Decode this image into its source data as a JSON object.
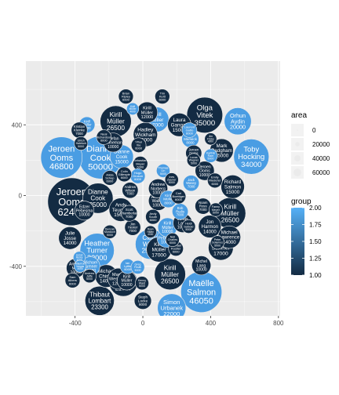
{
  "chart_data": {
    "type": "scatter",
    "subtype": "packed bubble chart",
    "title": "",
    "xlabel": "",
    "ylabel": "",
    "xlim": [
      -690,
      810
    ],
    "ylim": [
      -680,
      760
    ],
    "x_ticks": [
      -400,
      0,
      400,
      800
    ],
    "y_ticks": [
      -400,
      0,
      400
    ],
    "x_tick_labels": [
      "-400",
      "0",
      "400",
      "800"
    ],
    "y_tick_labels": [
      "-400",
      "0",
      "400"
    ],
    "grid": true,
    "panel_background": "#ebebeb",
    "legend": {
      "placement": "right",
      "area": {
        "title": "area",
        "values": [
          0,
          20000,
          40000,
          60000
        ],
        "labels": [
          "0",
          "20000",
          "40000",
          "60000"
        ]
      },
      "group": {
        "title": "group",
        "values": [
          2.0,
          1.75,
          1.5,
          1.25,
          1.0
        ],
        "labels": [
          "2.00",
          "1.75",
          "1.50",
          "1.25",
          "1.00"
        ],
        "low_color": "#132b43",
        "high_color": "#56b1f7"
      }
    },
    "colors": {
      "group_1": "#132b43",
      "group_2": "#4a9de3"
    },
    "bubbles": [
      {
        "label": [
          "Jeroen",
          "Ooms",
          "62400"
        ],
        "x": -420,
        "y": -35,
        "area": 62400,
        "group": 1
      },
      {
        "label": [
          "Jeroen",
          "Ooms",
          "46800"
        ],
        "x": -480,
        "y": 215,
        "area": 46800,
        "group": 2
      },
      {
        "label": [
          "Dianne",
          "Cook",
          "50000"
        ],
        "x": -250,
        "y": 215,
        "area": 50000,
        "group": 2
      },
      {
        "label": [
          "Maëlle",
          "Salmon",
          "46050"
        ],
        "x": 345,
        "y": -545,
        "area": 46050,
        "group": 2
      },
      {
        "label": [
          "Toby",
          "Hocking",
          "34000"
        ],
        "x": 640,
        "y": 220,
        "area": 34000,
        "group": 2
      },
      {
        "label": [
          "Olga",
          "Vitek",
          "35000"
        ],
        "x": 365,
        "y": 455,
        "area": 35000,
        "group": 1
      },
      {
        "label": [
          "Heather",
          "Turner",
          "32000"
        ],
        "x": -270,
        "y": -310,
        "area": 32000,
        "group": 2
      },
      {
        "label": [
          "Kirill",
          "Müller",
          "26500"
        ],
        "x": 515,
        "y": -100,
        "area": 26500,
        "group": 1
      },
      {
        "label": [
          "Kirill",
          "Müller",
          "26500"
        ],
        "x": 160,
        "y": -445,
        "area": 26500,
        "group": 1
      },
      {
        "label": [
          "Kirill",
          "Müller",
          "26500"
        ],
        "x": -160,
        "y": 420,
        "area": 26500,
        "group": 1
      },
      {
        "label": [
          "Thibaut",
          "Lombart",
          "23300"
        ],
        "x": -255,
        "y": -595,
        "area": 23300,
        "group": 1
      },
      {
        "label": [
          "Dianne",
          "Cook",
          "25000"
        ],
        "x": -265,
        "y": -15,
        "area": 25000,
        "group": 1
      },
      {
        "label": [
          "Claus",
          "Wilke",
          "25000"
        ],
        "x": 45,
        "y": -275,
        "area": 25000,
        "group": 2
      },
      {
        "label": [
          "Orhun",
          "Aydin",
          "20000"
        ],
        "x": 560,
        "y": 420,
        "area": 20000,
        "group": 2
      },
      {
        "label": [
          "Kirill",
          "Müller",
          "17000"
        ],
        "x": 95,
        "y": -305,
        "area": 17000,
        "group": 1
      },
      {
        "label": [
          "Simon",
          "Urbanek",
          "22000"
        ],
        "x": 170,
        "y": -635,
        "area": 22000,
        "group": 2
      },
      {
        "label": [
          "Martin",
          "Westgate",
          "21747"
        ],
        "x": -115,
        "y": -490,
        "area": 21747,
        "group": 1
      },
      {
        "label": [
          "Laura",
          "Gangali",
          "15000"
        ],
        "x": 215,
        "y": 400,
        "area": 15000,
        "group": 1
      },
      {
        "label": [
          "Julie",
          "Josse",
          "14000"
        ],
        "x": -430,
        "y": -240,
        "area": 14000,
        "group": 1
      },
      {
        "label": [
          "Michael",
          "Sumner",
          "17000"
        ],
        "x": 460,
        "y": -295,
        "area": 17000,
        "group": 1
      },
      {
        "label": [
          "Kirill",
          "Müller",
          "17000"
        ],
        "x": 80,
        "y": 430,
        "area": 17000,
        "group": 2
      },
      {
        "label": [
          "Richard",
          "Salmon",
          "15000"
        ],
        "x": 530,
        "y": 50,
        "area": 15000,
        "group": 1
      },
      {
        "label": [
          "Mark",
          "Padgham",
          "15000"
        ],
        "x": 465,
        "y": 255,
        "area": 15000,
        "group": 1
      },
      {
        "label": [
          "Jon",
          "Harmon",
          "14000"
        ],
        "x": 395,
        "y": -175,
        "area": 14000,
        "group": 1
      },
      {
        "label": [
          "Dianne",
          "Cook",
          "15000"
        ],
        "x": -125,
        "y": 220,
        "area": 15000,
        "group": 2
      },
      {
        "label": [
          "Andy",
          "Teucher",
          "15000"
        ],
        "x": -130,
        "y": -80,
        "area": 15000,
        "group": 1
      },
      {
        "label": [
          "Michael",
          "Chirico",
          "14000"
        ],
        "x": -215,
        "y": -455,
        "area": 14000,
        "group": 1
      },
      {
        "label": [
          "Michael",
          "Lawrence",
          "14000"
        ],
        "x": 510,
        "y": -235,
        "area": 14000,
        "group": 1
      },
      {
        "label": [
          "Martin",
          "Westgate",
          "12000"
        ],
        "x": -145,
        "y": -470,
        "area": 12000,
        "group": 1
      },
      {
        "label": [
          "Kirill",
          "Müller",
          "12000"
        ],
        "x": 25,
        "y": 470,
        "area": 12000,
        "group": 1
      },
      {
        "label": [
          "Edzer",
          "Pebesma",
          "10000"
        ],
        "x": 140,
        "y": -240,
        "area": 10000,
        "group": 2
      },
      {
        "label": [
          "Hadley",
          "Wickham",
          "16000"
        ],
        "x": 15,
        "y": 345,
        "area": 16000,
        "group": 1
      },
      {
        "label": [
          "Stefan",
          "Heineman",
          "10000"
        ],
        "x": -175,
        "y": 300,
        "area": 10000,
        "group": 1
      },
      {
        "label": [
          "Michel",
          "Lang",
          "10000"
        ],
        "x": 345,
        "y": -395,
        "area": 10000,
        "group": 1
      },
      {
        "label": [
          "Edzer",
          "Pebesma",
          "10000"
        ],
        "x": -345,
        "y": -85,
        "area": 10000,
        "group": 1
      },
      {
        "label": [
          "Andrew",
          "Walker",
          "10000"
        ],
        "x": 90,
        "y": -30,
        "area": 10000,
        "group": 1
      },
      {
        "label": [
          "Kirill",
          "Müller",
          "10000"
        ],
        "x": -95,
        "y": -480,
        "area": 10000,
        "group": 1
      },
      {
        "label": [
          "Kirill",
          "Müller",
          "10000"
        ],
        "x": 145,
        "y": -180,
        "area": 10000,
        "group": 2
      },
      {
        "label": [
          "Jonas",
          "Lang",
          "10000"
        ],
        "x": 235,
        "y": -155,
        "area": 10000,
        "group": 1
      },
      {
        "label": [
          "Andrew",
          "Norberg",
          "10000"
        ],
        "x": 90,
        "y": 40,
        "area": 10000,
        "group": 1
      },
      {
        "label": [
          "Jeroen",
          "Ooms",
          "10000"
        ],
        "x": 365,
        "y": 140,
        "area": 10000,
        "group": 1
      },
      {
        "label": [
          "Michael",
          "Sumner",
          "10000"
        ],
        "x": -310,
        "y": -400,
        "area": 10000,
        "group": 2
      },
      {
        "label": [
          "Antonio",
          "Mart",
          "10000"
        ],
        "x": -395,
        "y": -410,
        "area": 10000,
        "group": 1
      },
      {
        "label": [
          "Steph",
          "Locke",
          "8000"
        ],
        "x": 0,
        "y": -595,
        "area": 8000,
        "group": 1
      },
      {
        "label": [
          "Kirill",
          "Müller",
          "8000"
        ],
        "x": 150,
        "y": -20,
        "area": 8000,
        "group": 2
      },
      {
        "label": [
          "Ben",
          "Marwick",
          "8000"
        ],
        "x": 280,
        "y": 320,
        "area": 8000,
        "group": 2
      },
      {
        "label": [
          "Jim",
          "Hester",
          "7000"
        ],
        "x": -60,
        "y": -180,
        "area": 7000,
        "group": 1
      },
      {
        "label": [
          "Kirill",
          "Müller",
          "7000"
        ],
        "x": -330,
        "y": 400,
        "area": 7000,
        "group": 2
      },
      {
        "label": [
          "Jeroen",
          "Ooms",
          "7000"
        ],
        "x": 300,
        "y": 240,
        "area": 7000,
        "group": 1
      },
      {
        "label": [
          "Kristian",
          "Kleinke",
          "7000"
        ],
        "x": -375,
        "y": 370,
        "area": 7000,
        "group": 1
      },
      {
        "label": [
          "Noam",
          "Ross",
          "7000"
        ],
        "x": 355,
        "y": -60,
        "area": 7000,
        "group": 1
      },
      {
        "label": [
          "Scott",
          "Chamberlain",
          "7000"
        ],
        "x": -80,
        "y": -100,
        "area": 7000,
        "group": 1
      },
      {
        "label": [
          "Andrew",
          "Wilson",
          "7000"
        ],
        "x": -75,
        "y": 30,
        "area": 7000,
        "group": 1
      },
      {
        "label": [
          "Bob",
          "Rudis",
          "7000"
        ],
        "x": 220,
        "y": -90,
        "area": 7000,
        "group": 2
      },
      {
        "label": [
          "Jack",
          "Wasey",
          "7000"
        ],
        "x": 285,
        "y": 70,
        "area": 7000,
        "group": 2
      },
      {
        "label": [
          "Sam",
          "Albers",
          "6000"
        ],
        "x": -415,
        "y": -480,
        "area": 6000,
        "group": 1
      },
      {
        "label": [
          "Neal",
          "Richardson",
          "6000"
        ],
        "x": -230,
        "y": 330,
        "area": 6000,
        "group": 1
      },
      {
        "label": [
          "Michael",
          "Rustler",
          "6000"
        ],
        "x": 195,
        "y": -300,
        "area": 6000,
        "group": 1
      },
      {
        "label": [
          "Ian",
          "Lyttle",
          "6000"
        ],
        "x": -90,
        "y": -400,
        "area": 6000,
        "group": 2
      },
      {
        "label": [
          "Tim",
          "Keitt",
          "6000"
        ],
        "x": 115,
        "y": 560,
        "area": 6000,
        "group": 1
      },
      {
        "label": [
          "Sebastian",
          "Meyer",
          "6000"
        ],
        "x": -15,
        "y": 180,
        "area": 6000,
        "group": 1
      },
      {
        "label": [
          "Andy",
          "South",
          "6000"
        ],
        "x": 60,
        "y": -120,
        "area": 6000,
        "group": 1
      },
      {
        "label": [
          "Laurent",
          "Gatto",
          "6000"
        ],
        "x": 275,
        "y": 370,
        "area": 6000,
        "group": 2
      },
      {
        "label": [
          "Yihui",
          "Xie",
          "6000"
        ],
        "x": -25,
        "y": 285,
        "area": 6000,
        "group": 1
      },
      {
        "label": [
          "Carl",
          "Boettiger",
          "6000"
        ],
        "x": 210,
        "y": -5,
        "area": 6000,
        "group": 1
      },
      {
        "label": [
          "Alicia",
          "Schep",
          "6000"
        ],
        "x": -195,
        "y": 100,
        "area": 6000,
        "group": 1
      },
      {
        "label": [
          "Hugo",
          "Gruson",
          "6000"
        ],
        "x": -30,
        "y": 110,
        "area": 6000,
        "group": 2
      },
      {
        "label": [
          "Colin",
          "Gillespie",
          "6000"
        ],
        "x": -110,
        "y": 120,
        "area": 6000,
        "group": 1
      },
      {
        "label": [
          "Emily",
          "Riederer",
          "6000"
        ],
        "x": 425,
        "y": 85,
        "area": 6000,
        "group": 1
      },
      {
        "label": [
          "Brian",
          "Ripley",
          "6000"
        ],
        "x": -100,
        "y": 560,
        "area": 6000,
        "group": 1
      },
      {
        "label": [
          "Ulrich",
          "Halekoh",
          "5000"
        ],
        "x": -365,
        "y": 295,
        "area": 5000,
        "group": 1
      },
      {
        "label": [
          "Karthik",
          "Ram",
          "5000"
        ],
        "x": 400,
        "y": 225,
        "area": 5000,
        "group": 2
      },
      {
        "label": [
          "Heidi",
          "Seibold",
          "5000"
        ],
        "x": 270,
        "y": -175,
        "area": 5000,
        "group": 1
      },
      {
        "label": [
          "Thomas",
          "Lin",
          "5000"
        ],
        "x": 120,
        "y": 140,
        "area": 5000,
        "group": 2
      },
      {
        "label": [
          "Fanny",
          "Meyer",
          "5000"
        ],
        "x": 430,
        "y": -80,
        "area": 5000,
        "group": 1
      },
      {
        "label": [
          "Peter",
          "Solymos",
          "5000"
        ],
        "x": 440,
        "y": -265,
        "area": 5000,
        "group": 1
      },
      {
        "label": [
          "Greg",
          "Finak",
          "5000"
        ],
        "x": -30,
        "y": -405,
        "area": 5000,
        "group": 2
      },
      {
        "label": [
          "Andrew",
          "Jaffe",
          "5000"
        ],
        "x": -315,
        "y": -455,
        "area": 5000,
        "group": 1
      },
      {
        "label": [
          "Duncan",
          "Murdoch",
          "5000"
        ],
        "x": -195,
        "y": -205,
        "area": 5000,
        "group": 1
      },
      {
        "label": [
          "Kenny",
          "Ward",
          "5000"
        ],
        "x": -5,
        "y": -495,
        "area": 5000,
        "group": 1
      },
      {
        "label": [
          "Ines",
          "Zauner",
          "5000"
        ],
        "x": 170,
        "y": 90,
        "area": 5000,
        "group": 1
      },
      {
        "label": [
          "Neil",
          "Charles",
          "5000"
        ],
        "x": 175,
        "y": -250,
        "area": 5000,
        "group": 1
      },
      {
        "label": [
          "Lucas",
          "Wagner",
          "5000"
        ],
        "x": 300,
        "y": 200,
        "area": 5000,
        "group": 1
      },
      {
        "label": [
          "Jim",
          "Fricke",
          "4000"
        ],
        "x": 400,
        "y": 320,
        "area": 4000,
        "group": 1
      },
      {
        "label": [
          "Ryan",
          "Hafen",
          "4000"
        ],
        "x": 45,
        "y": -205,
        "area": 4000,
        "group": 1
      },
      {
        "label": [
          "Kirill",
          "Müller",
          "4000"
        ],
        "x": -60,
        "y": 490,
        "area": 4000,
        "group": 2
      },
      {
        "label": [
          "Lionel",
          "Henry",
          "4000"
        ],
        "x": -375,
        "y": -350,
        "area": 4000,
        "group": 2
      },
      {
        "label": [
          "Mauricio",
          "Vargas",
          "4000"
        ],
        "x": -370,
        "y": -400,
        "area": 4000,
        "group": 2
      }
    ]
  }
}
